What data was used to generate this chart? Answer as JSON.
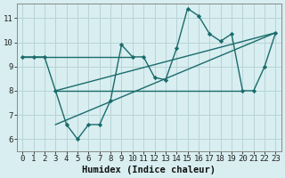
{
  "xlabel": "Humidex (Indice chaleur)",
  "bg_color": "#d8eef0",
  "grid_color": "#b8d4d8",
  "line_color": "#1a6b6b",
  "xlim": [
    -0.5,
    23.5
  ],
  "ylim": [
    5.5,
    11.6
  ],
  "xticks": [
    0,
    1,
    2,
    3,
    4,
    5,
    6,
    7,
    8,
    9,
    10,
    11,
    12,
    13,
    14,
    15,
    16,
    17,
    18,
    19,
    20,
    21,
    22,
    23
  ],
  "yticks": [
    6,
    7,
    8,
    9,
    10,
    11
  ],
  "main_x": [
    0,
    1,
    2,
    3,
    4,
    5,
    6,
    7,
    8,
    9,
    10,
    11,
    12,
    13,
    14,
    15,
    16,
    17,
    18,
    19,
    20,
    21,
    22,
    23
  ],
  "main_y": [
    9.4,
    9.4,
    9.4,
    8.0,
    6.6,
    6.0,
    6.6,
    6.6,
    7.6,
    9.9,
    9.4,
    9.4,
    8.55,
    8.45,
    9.75,
    11.4,
    11.1,
    10.35,
    10.05,
    10.35,
    8.0,
    8.0,
    9.0,
    10.4
  ],
  "hline1_x": [
    0,
    10
  ],
  "hline1_y": [
    9.4,
    9.4
  ],
  "hline2_x": [
    3,
    20
  ],
  "hline2_y": [
    8.0,
    8.0
  ],
  "trend1_x": [
    3,
    23
  ],
  "trend1_y": [
    6.6,
    10.4
  ],
  "trend2_x": [
    3,
    23
  ],
  "trend2_y": [
    8.0,
    10.4
  ],
  "fontsize_label": 7.5,
  "tick_fontsize": 6.5
}
